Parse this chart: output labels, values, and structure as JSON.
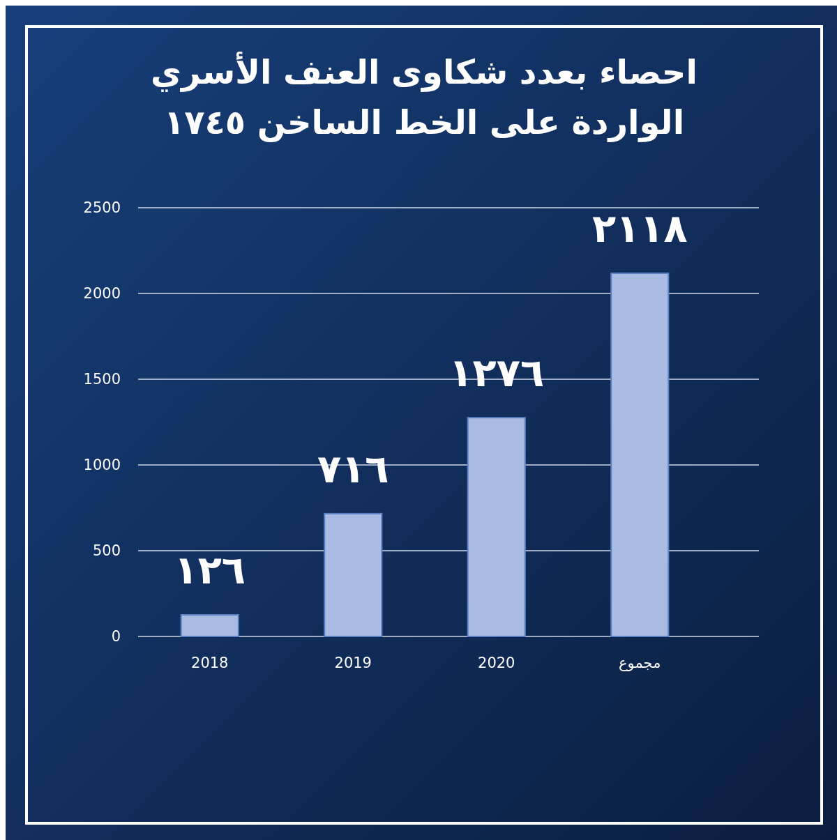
{
  "chart_data": {
    "type": "bar",
    "title": "احصاء بعدد شكاوى العنف الأسري\nالواردة على الخط الساخن ١٧٤٥",
    "categories": [
      "2018",
      "2019",
      "2020",
      "مجموع"
    ],
    "values": [
      126,
      716,
      1276,
      2118
    ],
    "value_labels": [
      "١٢٦",
      "٧١٦",
      "١٢٧٦",
      "٢١١٨"
    ],
    "color": "#a9bbe3",
    "ylim": [
      0,
      2500
    ],
    "yticks": [
      0,
      500,
      1000,
      1500,
      2000,
      2500
    ],
    "grid": "y"
  }
}
